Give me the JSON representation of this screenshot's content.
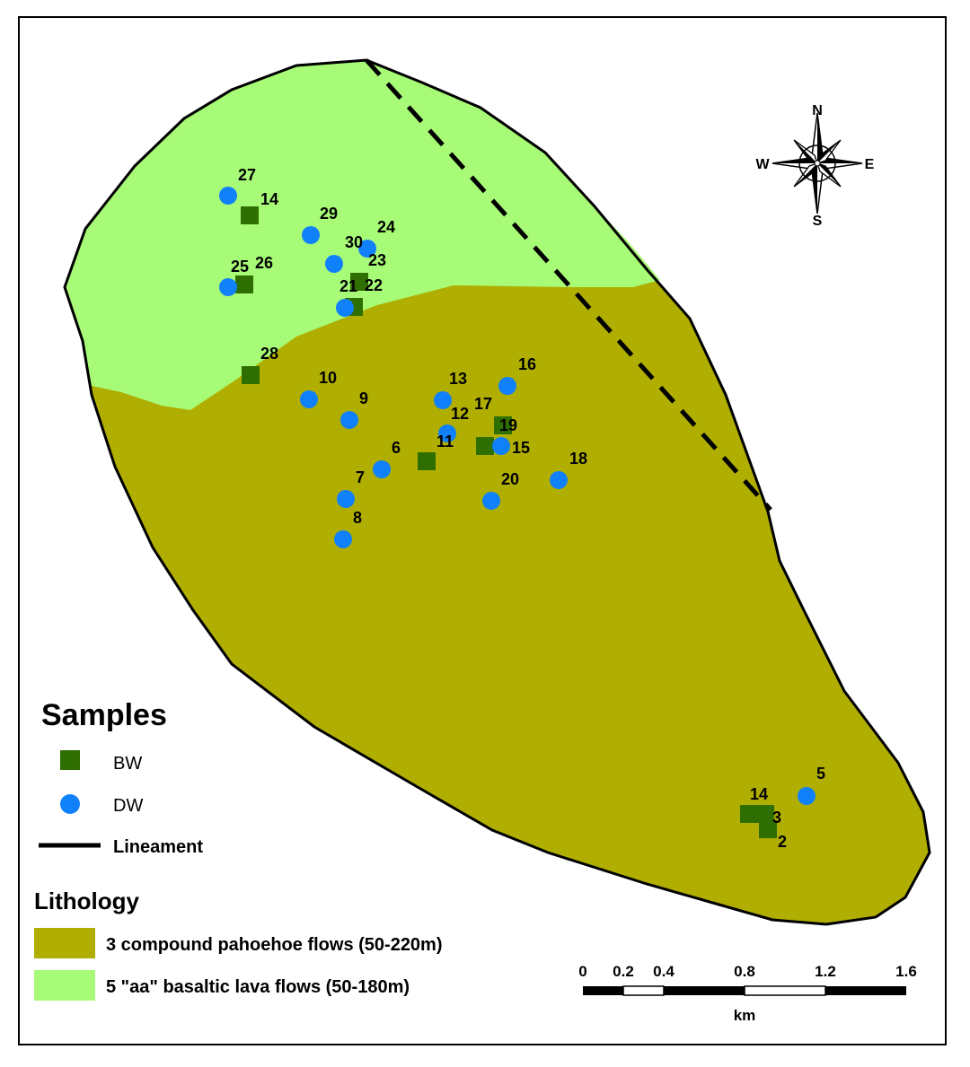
{
  "colors": {
    "pahoehoe": "#b0ae00",
    "aa": "#a7fb77",
    "bw_marker": "#2f6e00",
    "dw_marker": "#1180fb",
    "outline": "#000000"
  },
  "compass": {
    "north": "N",
    "south": "S",
    "east": "E",
    "west": "W"
  },
  "bw_samples": [
    {
      "label": "14"
    },
    {
      "label": "26"
    },
    {
      "label": "23"
    },
    {
      "label": "22"
    },
    {
      "label": "28"
    },
    {
      "label": "11"
    },
    {
      "label": "17"
    },
    {
      "label": "19"
    },
    {
      "label": "14"
    },
    {
      "label": "3"
    },
    {
      "label": "2"
    }
  ],
  "dw_samples": [
    {
      "label": "27"
    },
    {
      "label": "29"
    },
    {
      "label": "24"
    },
    {
      "label": "30"
    },
    {
      "label": "25"
    },
    {
      "label": "21"
    },
    {
      "label": "10"
    },
    {
      "label": "9"
    },
    {
      "label": "13"
    },
    {
      "label": "16"
    },
    {
      "label": "12"
    },
    {
      "label": "15"
    },
    {
      "label": "6"
    },
    {
      "label": "7"
    },
    {
      "label": "8"
    },
    {
      "label": "20"
    },
    {
      "label": "18"
    },
    {
      "label": "5"
    }
  ],
  "legend": {
    "samples_title": "Samples",
    "bw_label": "BW",
    "dw_label": "DW",
    "lineament_label": "Lineament",
    "lithology_title": "Lithology",
    "pahoehoe_label": "3 compound pahoehoe flows (50-220m)",
    "aa_label": "5 \"aa\" basaltic lava flows (50-180m)"
  },
  "scale_bar": {
    "ticks": [
      "0",
      "0.2",
      "0.4",
      "0.8",
      "1.2",
      "1.6"
    ],
    "unit": "km"
  }
}
